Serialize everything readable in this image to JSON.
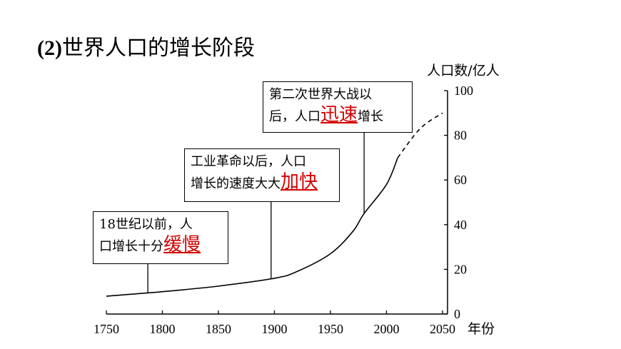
{
  "title": {
    "prefix": "(2)",
    "text": "世界人口的增长阶段"
  },
  "chart_data": {
    "type": "line",
    "title": "(2)世界人口的增长阶段",
    "ylabel": "人口数/亿人",
    "xlabel": "年份",
    "xlim": [
      1750,
      2050
    ],
    "ylim": [
      0,
      100
    ],
    "xticks": [
      1750,
      1800,
      1850,
      1900,
      1950,
      2000,
      2050
    ],
    "yticks": [
      0,
      20,
      40,
      60,
      80,
      100
    ],
    "series": [
      {
        "style": "solid",
        "x": [
          1750,
          1800,
          1850,
          1900,
          1920,
          1950,
          1970,
          1980,
          2000,
          2010
        ],
        "y": [
          8,
          10,
          12.5,
          16,
          19,
          27,
          37,
          45,
          58,
          70
        ]
      },
      {
        "style": "dashed",
        "x": [
          2010,
          2030,
          2050
        ],
        "y": [
          70,
          83,
          90
        ]
      }
    ],
    "annotations": [
      {
        "x": 1787,
        "lines": [
          "18世纪以前，人",
          "口增长十分"
        ],
        "highlight": "缓慢"
      },
      {
        "x": 1897,
        "lines": [
          "工业革命以后，人口",
          "增长的速度大大"
        ],
        "highlight": "加快"
      },
      {
        "x": 1980,
        "lines": [
          "第二次世界大战以",
          "后，人口"
        ],
        "highlight": "迅速",
        "suffix": "增长"
      }
    ]
  },
  "colors": {
    "axis": "#000000",
    "line": "#000000",
    "highlight": "#d40000"
  }
}
